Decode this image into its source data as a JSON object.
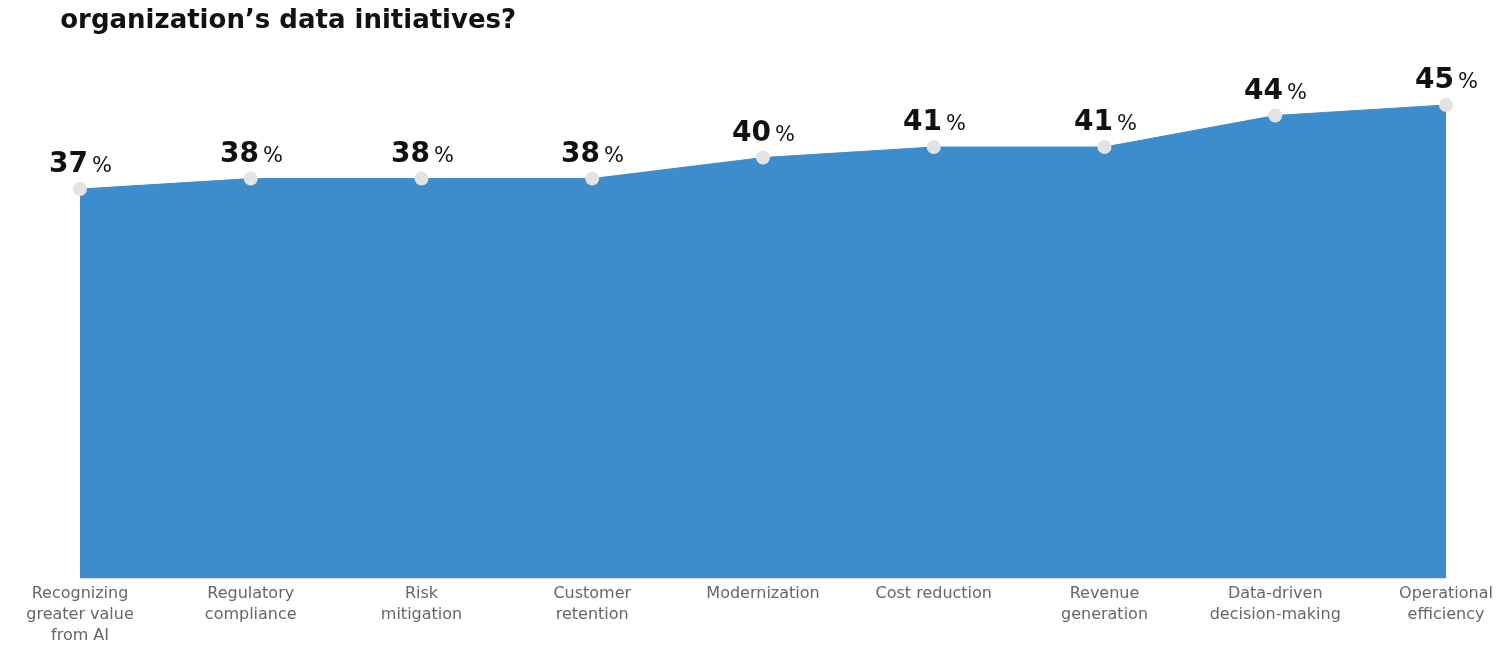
{
  "chart_data": {
    "type": "area",
    "title": "organization’s data initiatives?",
    "categories": [
      "Recognizing greater value from AI",
      "Regulatory compliance",
      "Risk mitigation",
      "Customer retention",
      "Modernization",
      "Cost reduction",
      "Revenue generation",
      "Data-driven decision-making",
      "Operational efficiency"
    ],
    "series": [
      {
        "color": "#3d8dcc",
        "values": [
          37,
          38,
          38,
          38,
          40,
          41,
          41,
          44,
          45
        ]
      }
    ],
    "value_labels": [
      "37%",
      "38%",
      "38%",
      "38%",
      "40%",
      "41%",
      "41%",
      "44%",
      "45%"
    ],
    "data_labels": true,
    "marker": "circle",
    "grid": false
  }
}
